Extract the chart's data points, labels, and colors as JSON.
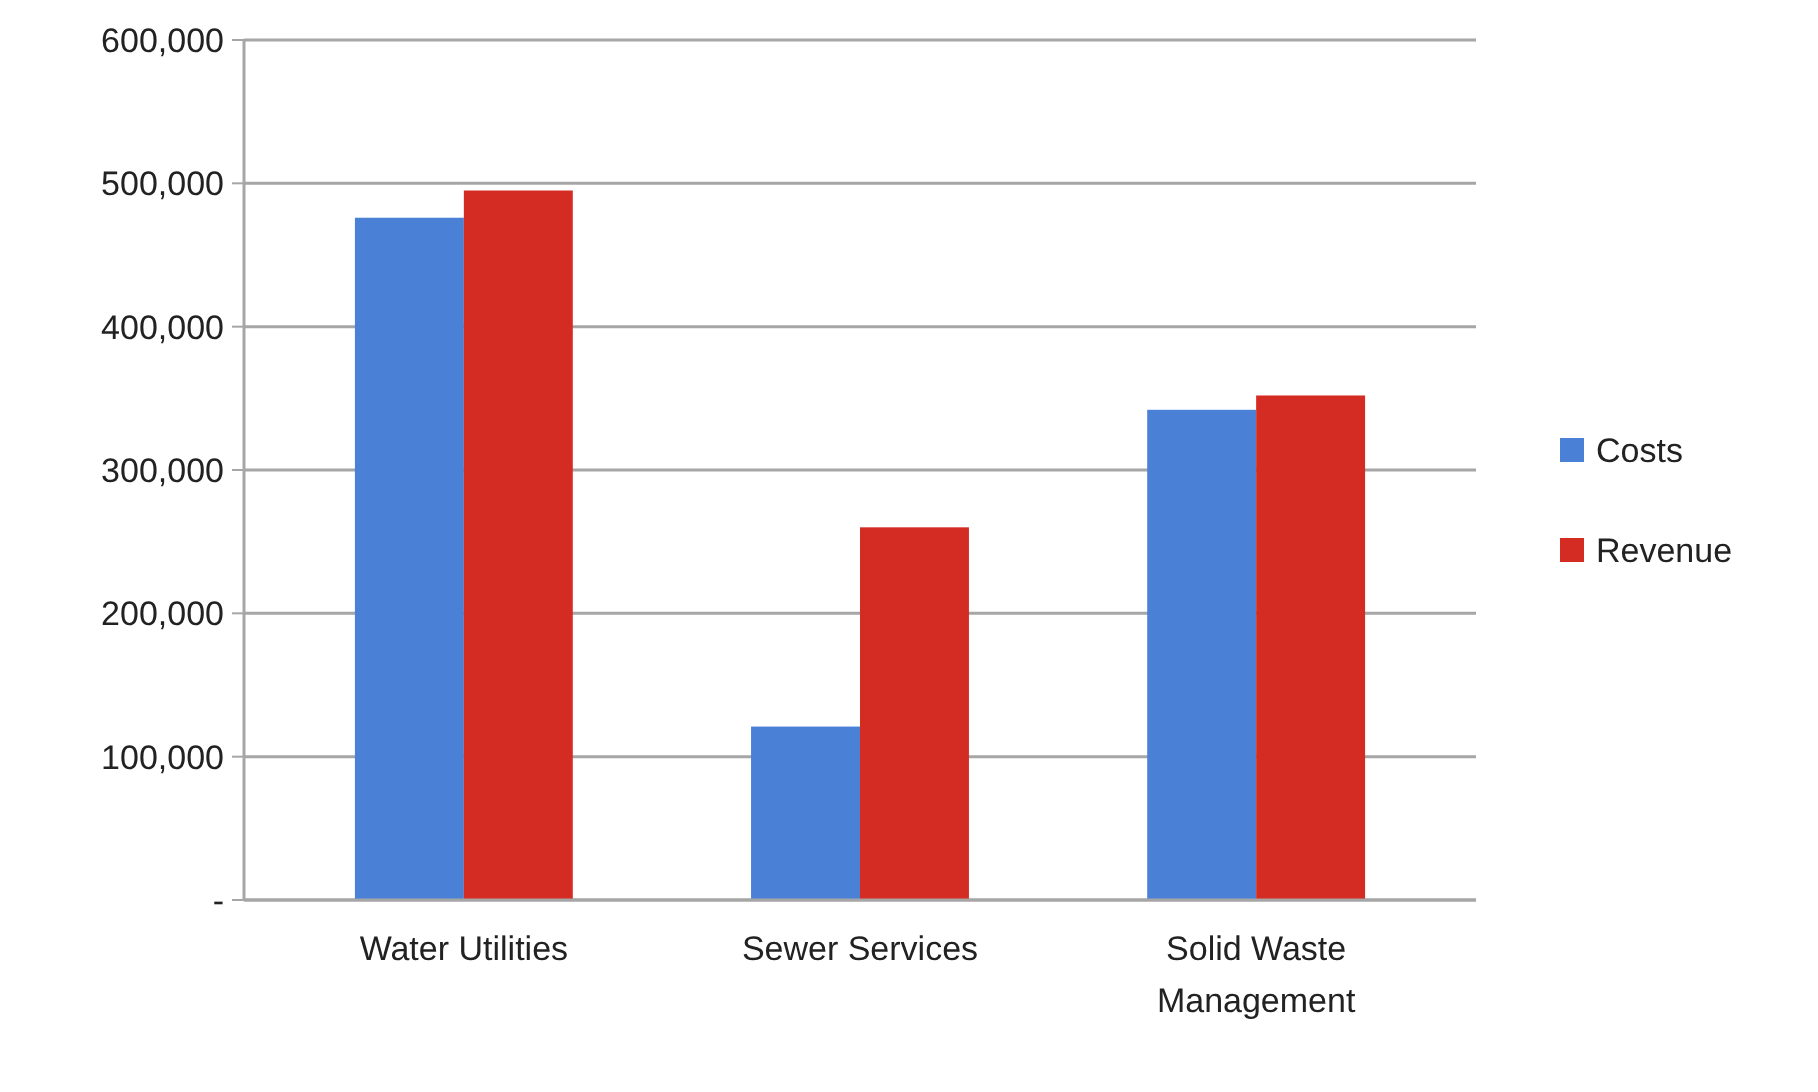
{
  "chart_data": {
    "type": "bar",
    "categories": [
      "Water Utilities",
      "Sewer Services",
      "Solid Waste Management"
    ],
    "series": [
      {
        "name": "Costs",
        "color": "#4a80d6",
        "values": [
          476000,
          121000,
          342000
        ]
      },
      {
        "name": "Revenue",
        "color": "#d42b22",
        "values": [
          495000,
          260000,
          352000
        ]
      }
    ],
    "ylim": [
      0,
      600000
    ],
    "yticks": [
      {
        "value": 0,
        "label": "-"
      },
      {
        "value": 100000,
        "label": "100,000"
      },
      {
        "value": 200000,
        "label": "200,000"
      },
      {
        "value": 300000,
        "label": "300,000"
      },
      {
        "value": 400000,
        "label": "400,000"
      },
      {
        "value": 500000,
        "label": "500,000"
      },
      {
        "value": 600000,
        "label": "600,000"
      }
    ],
    "grid": "y",
    "legend": "right"
  }
}
